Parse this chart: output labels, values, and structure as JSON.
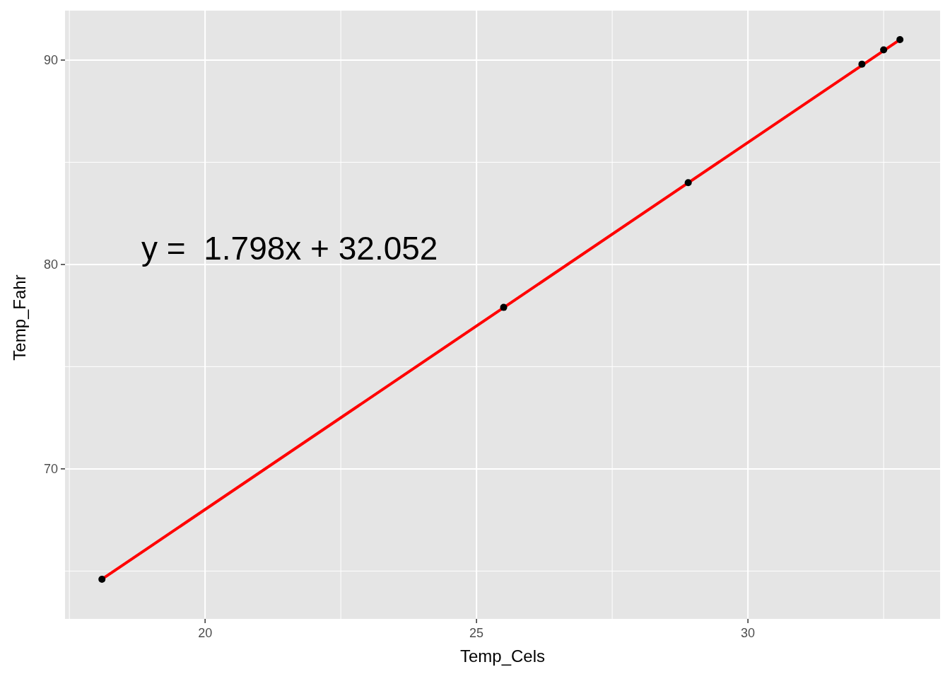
{
  "chart_data": {
    "type": "scatter",
    "xlabel": "Temp_Cels",
    "ylabel": "Temp_Fahr",
    "annotations": [
      "y =  1.798x + 32.052"
    ],
    "xlim": [
      17.42,
      33.54
    ],
    "ylim": [
      62.66,
      92.42
    ],
    "xticks": [
      {
        "value": 17.5,
        "label": null
      },
      20,
      {
        "value": 22.5,
        "label": null
      },
      25,
      {
        "value": 27.5,
        "label": null
      },
      30,
      {
        "value": 32.5,
        "label": null
      }
    ],
    "yticks": [
      {
        "value": 65,
        "label": null
      },
      70,
      {
        "value": 75,
        "label": null
      },
      80,
      {
        "value": 85,
        "label": null
      },
      90
    ],
    "grid": true,
    "series": [
      {
        "marker": "circle",
        "color": "#000000",
        "x": [
          18.1,
          25.5,
          28.9,
          32.1,
          32.5,
          32.8
        ],
        "values": [
          64.6,
          77.9,
          84.0,
          89.8,
          90.5,
          91.0
        ]
      },
      {
        "type": "line",
        "marker": "none",
        "color": "#ff0000",
        "x": [
          18.1,
          32.8
        ],
        "values": [
          64.6,
          91.0
        ]
      }
    ]
  }
}
